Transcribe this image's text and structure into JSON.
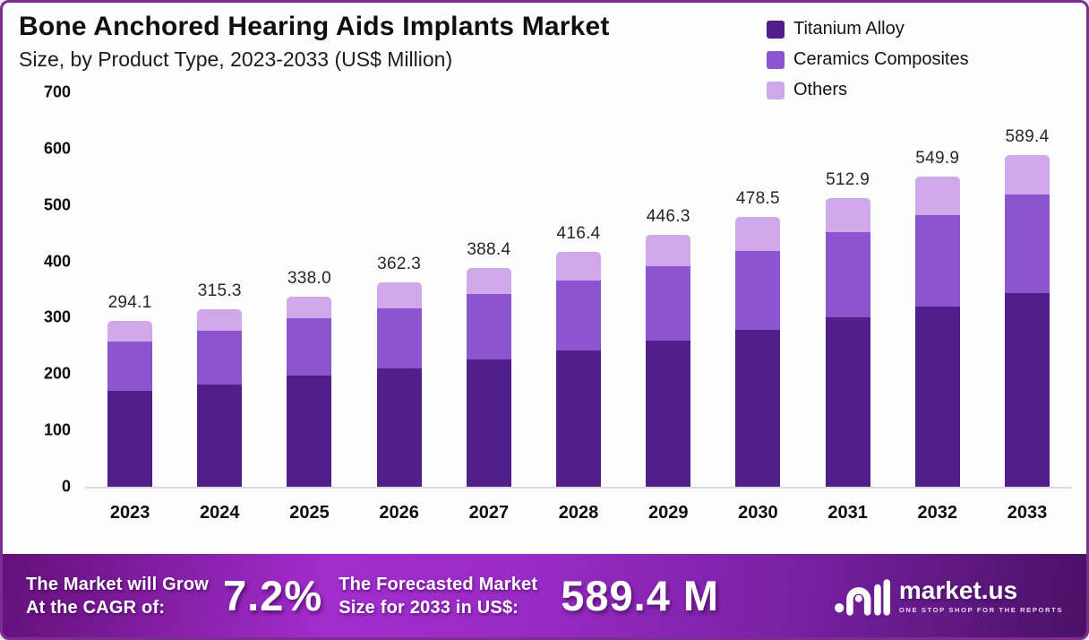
{
  "header": {
    "title": "Bone Anchored Hearing Aids Implants Market",
    "subtitle": "Size, by Product Type, 2023-2033 (US$ Million)"
  },
  "legend": [
    {
      "label": "Titanium Alloy",
      "color": "#521e8a"
    },
    {
      "label": "Ceramics Composites",
      "color": "#8c54ce"
    },
    {
      "label": "Others",
      "color": "#cfa9e9"
    }
  ],
  "chart_data": {
    "type": "bar",
    "stacked": true,
    "title": "Bone Anchored Hearing Aids Implants Market Size, by Product Type, 2023-2033 (US$ Million)",
    "categories": [
      "2023",
      "2024",
      "2025",
      "2026",
      "2027",
      "2028",
      "2029",
      "2030",
      "2031",
      "2032",
      "2033"
    ],
    "series": [
      {
        "name": "Titanium Alloy",
        "color": "#521e8a",
        "values": [
          170.0,
          182.0,
          197.0,
          210.0,
          226.0,
          242.0,
          259.0,
          279.0,
          300.0,
          320.0,
          344.0
        ]
      },
      {
        "name": "Ceramics Composites",
        "color": "#8c54ce",
        "values": [
          87.0,
          95.0,
          103.0,
          107.0,
          116.0,
          124.0,
          132.0,
          140.0,
          152.0,
          162.0,
          175.0
        ]
      },
      {
        "name": "Others",
        "color": "#cfa9e9",
        "values": [
          37.1,
          38.3,
          38.0,
          45.3,
          46.4,
          50.4,
          55.3,
          59.5,
          60.9,
          67.9,
          70.4
        ]
      }
    ],
    "totals": [
      294.1,
      315.3,
      338.0,
      362.3,
      388.4,
      416.4,
      446.3,
      478.5,
      512.9,
      549.9,
      589.4
    ],
    "total_labels": [
      "294.1",
      "315.3",
      "338.0",
      "362.3",
      "388.4",
      "416.4",
      "446.3",
      "478.5",
      "512.9",
      "549.9",
      "589.4"
    ],
    "xlabel": "",
    "ylabel": "",
    "ylim": [
      0,
      700
    ],
    "yticks": [
      0,
      100,
      200,
      300,
      400,
      500,
      600,
      700
    ],
    "grid": false,
    "legend_position": "top-right"
  },
  "banner": {
    "cagr_line1": "The Market will Grow",
    "cagr_line2": "At the CAGR of:",
    "cagr_value": "7.2%",
    "forecast_line1": "The Forecasted Market",
    "forecast_line2": "Size for 2033 in US$:",
    "forecast_value": "589.4 M",
    "brand_name": "market.us",
    "brand_tagline": "ONE STOP SHOP FOR THE REPORTS"
  },
  "colors": {
    "page_border": "#7b2d94",
    "banner_gradient": [
      "#64107a",
      "#a32ccd",
      "#4a1166"
    ],
    "baseline": "#dbdbdb"
  }
}
